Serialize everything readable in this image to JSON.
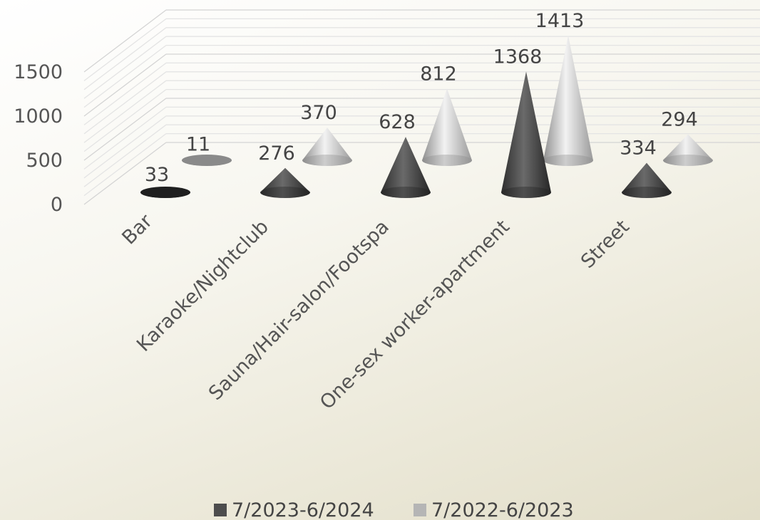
{
  "chart_data": {
    "type": "bar",
    "style": "3d-cone",
    "categories": [
      "Bar",
      "Karaoke/Nightclub",
      "Sauna/Hair-salon/Footspa",
      "One-sex worker-apartment",
      "Street"
    ],
    "series": [
      {
        "name": "7/2023-6/2024",
        "values": [
          33,
          276,
          628,
          1368,
          334
        ],
        "color": "#4d4d4d"
      },
      {
        "name": "7/2022-6/2023",
        "values": [
          11,
          370,
          812,
          1413,
          294
        ],
        "color": "#b5b5b5"
      }
    ],
    "y_ticks": [
      "0",
      "500",
      "1000",
      "1500"
    ],
    "ylim": [
      0,
      1500
    ],
    "grid": true,
    "legend_position": "bottom"
  }
}
